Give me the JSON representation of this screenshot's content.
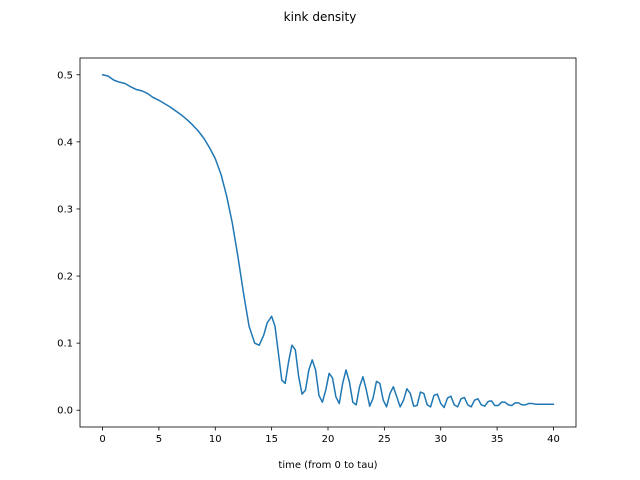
{
  "chart_data": {
    "type": "line",
    "title": "kink density",
    "xlabel": "time (from 0 to tau)",
    "ylabel": "",
    "xlim": [
      -2,
      42
    ],
    "ylim": [
      -0.025,
      0.525
    ],
    "xticks": [
      0,
      5,
      10,
      15,
      20,
      25,
      30,
      35,
      40
    ],
    "yticks": [
      0.0,
      0.1,
      0.2,
      0.3,
      0.4,
      0.5
    ],
    "ytick_labels": [
      "0.0",
      "0.1",
      "0.2",
      "0.3",
      "0.4",
      "0.5"
    ],
    "grid": false,
    "legend": "none",
    "colors": {
      "line": "#1f77b4"
    },
    "series": [
      {
        "x": [
          0,
          0.5,
          1,
          1.5,
          2,
          2.5,
          3,
          3.5,
          4,
          4.5,
          5,
          5.5,
          6,
          6.5,
          7,
          7.5,
          8,
          8.5,
          9,
          9.5,
          10,
          10.5,
          11,
          11.5,
          12,
          12.5,
          13,
          13.5,
          13.9,
          14.3,
          14.6,
          15,
          15.3,
          15.6,
          15.9,
          16.2,
          16.5,
          16.8,
          17.1,
          17.4,
          17.7,
          18.0,
          18.3,
          18.6,
          18.9,
          19.2,
          19.5,
          19.8,
          20.1,
          20.4,
          20.7,
          21.0,
          21.3,
          21.6,
          21.9,
          22.2,
          22.5,
          22.8,
          23.1,
          23.4,
          23.7,
          24.0,
          24.3,
          24.6,
          24.9,
          25.2,
          25.5,
          25.8,
          26.1,
          26.4,
          26.7,
          27.0,
          27.3,
          27.6,
          27.9,
          28.2,
          28.5,
          28.8,
          29.1,
          29.4,
          29.7,
          30.0,
          30.3,
          30.6,
          30.9,
          31.2,
          31.5,
          31.8,
          32.1,
          32.4,
          32.7,
          33.0,
          33.3,
          33.6,
          33.9,
          34.2,
          34.5,
          34.8,
          35.1,
          35.4,
          35.7,
          36.0,
          36.3,
          36.6,
          36.9,
          37.2,
          37.5,
          37.8,
          38.1,
          38.4,
          38.7,
          39.0,
          39.3,
          39.6,
          40.0
        ],
        "y": [
          0.5,
          0.498,
          0.492,
          0.489,
          0.487,
          0.482,
          0.478,
          0.476,
          0.472,
          0.466,
          0.462,
          0.457,
          0.452,
          0.446,
          0.44,
          0.433,
          0.425,
          0.416,
          0.405,
          0.391,
          0.375,
          0.352,
          0.32,
          0.28,
          0.23,
          0.175,
          0.125,
          0.1,
          0.097,
          0.112,
          0.13,
          0.14,
          0.125,
          0.085,
          0.045,
          0.04,
          0.072,
          0.097,
          0.09,
          0.05,
          0.024,
          0.03,
          0.06,
          0.075,
          0.06,
          0.022,
          0.012,
          0.03,
          0.055,
          0.048,
          0.02,
          0.01,
          0.04,
          0.06,
          0.042,
          0.012,
          0.008,
          0.035,
          0.05,
          0.03,
          0.006,
          0.018,
          0.043,
          0.04,
          0.015,
          0.005,
          0.025,
          0.035,
          0.02,
          0.005,
          0.015,
          0.032,
          0.025,
          0.006,
          0.007,
          0.027,
          0.025,
          0.008,
          0.005,
          0.022,
          0.024,
          0.01,
          0.004,
          0.018,
          0.021,
          0.008,
          0.005,
          0.017,
          0.019,
          0.008,
          0.005,
          0.015,
          0.017,
          0.008,
          0.006,
          0.013,
          0.014,
          0.007,
          0.007,
          0.012,
          0.012,
          0.008,
          0.007,
          0.011,
          0.011,
          0.008,
          0.008,
          0.01,
          0.01,
          0.009,
          0.009,
          0.009,
          0.009,
          0.009,
          0.009
        ]
      }
    ]
  }
}
